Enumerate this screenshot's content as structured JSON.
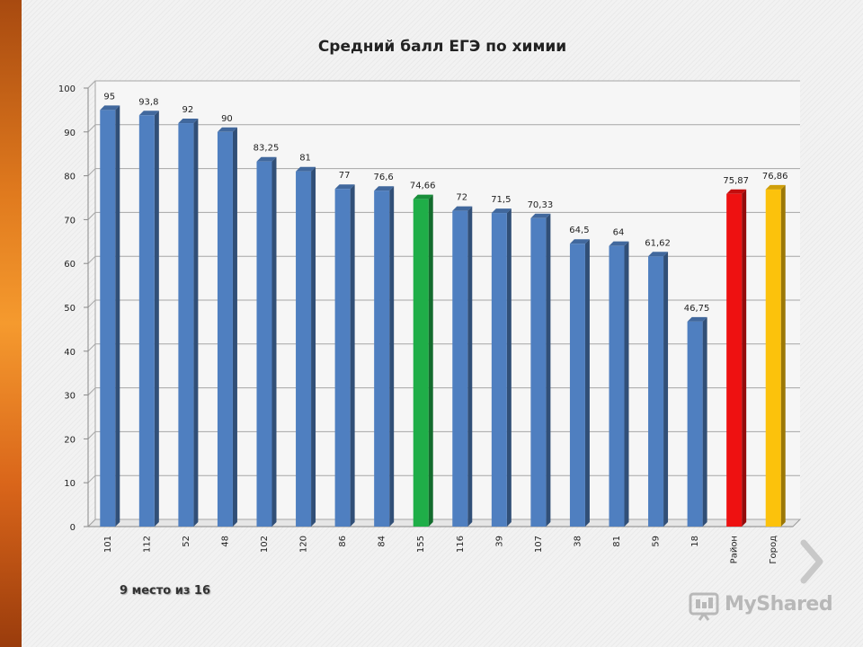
{
  "slide": {
    "rank_text": "9 место из 16",
    "logo_text": "MyShared"
  },
  "chart_data": {
    "type": "bar",
    "title": "Средний балл ЕГЭ по химии",
    "xlabel": "",
    "ylabel": "",
    "ylim": [
      0,
      100
    ],
    "yticks": [
      0,
      10,
      20,
      30,
      40,
      50,
      60,
      70,
      80,
      90,
      100
    ],
    "grid": true,
    "legend": "none",
    "categories": [
      "101",
      "112",
      "52",
      "48",
      "102",
      "120",
      "86",
      "84",
      "155",
      "116",
      "39",
      "107",
      "38",
      "81",
      "59",
      "18",
      "Район",
      "Город"
    ],
    "values": [
      95,
      93.8,
      92,
      90,
      83.25,
      81,
      77,
      76.6,
      74.66,
      72,
      71.5,
      70.33,
      64.5,
      64,
      61.62,
      46.75,
      75.87,
      76.86
    ],
    "labels": [
      "95",
      "93,8",
      "92",
      "90",
      "83,25",
      "81",
      "77",
      "76,6",
      "74,66",
      "72",
      "71,5",
      "70,33",
      "64,5",
      "64",
      "61,62",
      "46,75",
      "75,87",
      "76,86"
    ],
    "colors": {
      "default": "#4f7fc0",
      "highlight": {
        "155": "#1fae48",
        "Район": "#ee1111",
        "Город": "#fcc20c"
      }
    }
  }
}
